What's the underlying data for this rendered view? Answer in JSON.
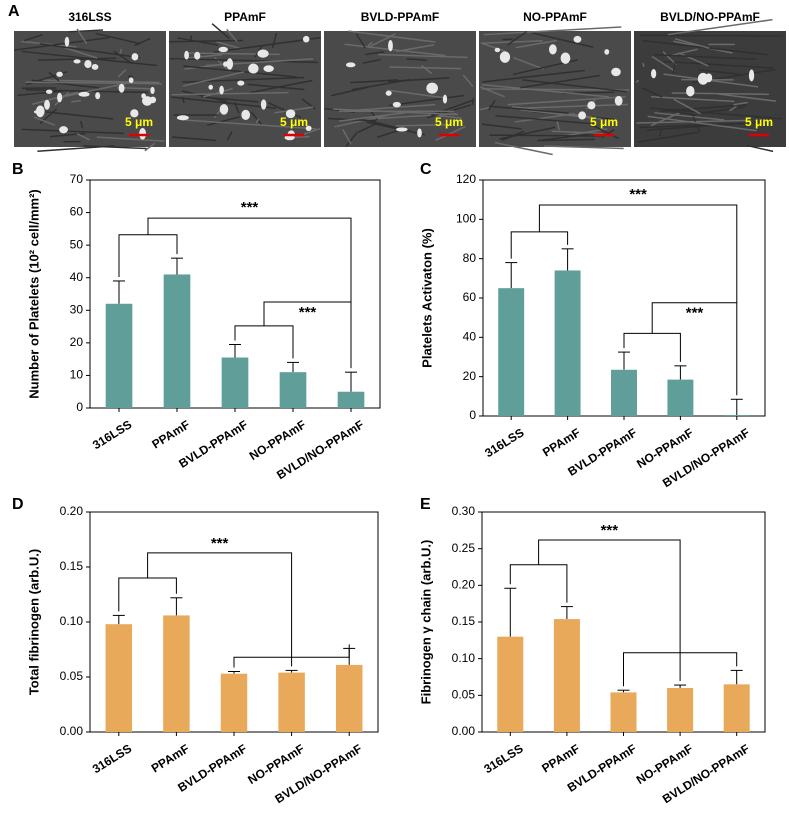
{
  "panel_a": {
    "label": "A",
    "images": [
      {
        "title": "316LSS",
        "scale_bar": "5 μm"
      },
      {
        "title": "PPAmF",
        "scale_bar": "5 μm"
      },
      {
        "title": "BVLD-PPAmF",
        "scale_bar": "5 μm"
      },
      {
        "title": "NO-PPAmF",
        "scale_bar": "5 μm"
      },
      {
        "title": "BVLD/NO-PPAmF",
        "scale_bar": "5 μm"
      }
    ]
  },
  "chart_data": [
    {
      "type": "bar",
      "label": "B",
      "ylabel": "Number of Platelets (10² cell/mm²)",
      "categories": [
        "316LSS",
        "PPAmF",
        "BVLD-PPAmF",
        "NO-PPAmF",
        "BVLD/NO-PPAmF"
      ],
      "values": [
        32,
        41,
        15.5,
        11,
        5
      ],
      "errors": [
        7,
        5,
        4,
        3,
        6
      ],
      "color": "#5f9e99",
      "ylim": [
        0,
        70
      ],
      "yticks": [
        0,
        10,
        20,
        30,
        40,
        50,
        60,
        70
      ],
      "annotations": [
        "***",
        "***"
      ]
    },
    {
      "type": "bar",
      "label": "C",
      "ylabel": "Platelets Activaton (%)",
      "categories": [
        "316LSS",
        "PPAmF",
        "BVLD-PPAmF",
        "NO-PPAmF",
        "BVLD/NO-PPAmF"
      ],
      "values": [
        65,
        74,
        23.5,
        18.5,
        0.5
      ],
      "errors": [
        13,
        11,
        9,
        7,
        8
      ],
      "color": "#5f9e99",
      "ylim": [
        0,
        120
      ],
      "yticks": [
        0,
        20,
        40,
        60,
        80,
        100,
        120
      ],
      "annotations": [
        "***",
        "***"
      ]
    },
    {
      "type": "bar",
      "label": "D",
      "ylabel": "Total fibrinogen (arb.U.)",
      "categories": [
        "316LSS",
        "PPAmF",
        "BVLD-PPAmF",
        "NO-PPAmF",
        "BVLD/NO-PPAmF"
      ],
      "values": [
        0.098,
        0.106,
        0.053,
        0.054,
        0.061
      ],
      "errors": [
        0.008,
        0.016,
        0.002,
        0.002,
        0.015
      ],
      "color": "#e8aa5a",
      "ylim": [
        0,
        0.2
      ],
      "yticks": [
        {
          "value": 0,
          "label": "0.00"
        },
        0.05,
        {
          "value": 0.1,
          "label": "0.10"
        },
        0.15,
        {
          "value": 0.2,
          "label": "0.20"
        }
      ],
      "annotations": [
        "***"
      ]
    },
    {
      "type": "bar",
      "label": "E",
      "ylabel": "Fibrinogen γ chain (arb.U.)",
      "categories": [
        "316LSS",
        "PPAmF",
        "BVLD-PPAmF",
        "NO-PPAmF",
        "BVLD/NO-PPAmF"
      ],
      "values": [
        0.13,
        0.154,
        0.054,
        0.06,
        0.065
      ],
      "errors": [
        0.066,
        0.017,
        0.003,
        0.004,
        0.019
      ],
      "color": "#e8aa5a",
      "ylim": [
        0,
        0.3
      ],
      "yticks": [
        {
          "value": 0,
          "label": "0.00"
        },
        0.05,
        {
          "value": 0.1,
          "label": "0.10"
        },
        0.15,
        {
          "value": 0.2,
          "label": "0.20"
        },
        0.25,
        {
          "value": 0.3,
          "label": "0.30"
        }
      ],
      "annotations": [
        "***"
      ]
    }
  ]
}
